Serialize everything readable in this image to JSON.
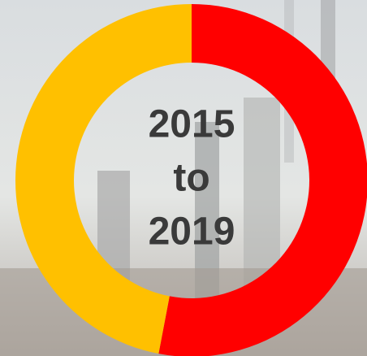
{
  "chart_data": {
    "type": "pie",
    "donut": true,
    "values": [
      53,
      47
    ],
    "colors": [
      "#ff0000",
      "#ffc000"
    ],
    "start": "top",
    "direction": "clockwise",
    "center_text": [
      "2015",
      "to",
      "2019"
    ]
  }
}
